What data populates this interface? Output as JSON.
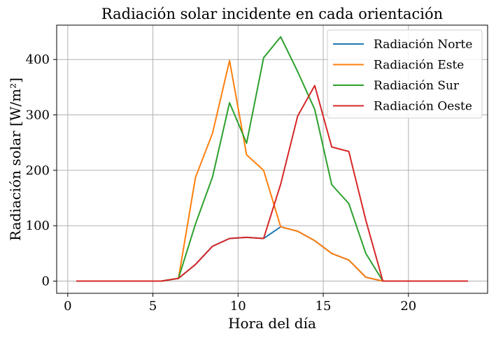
{
  "chart_data": {
    "type": "line",
    "title": "Radiación solar incidente en cada orientación",
    "xlabel": "Hora del día",
    "ylabel": "Radiación solar [W/m²]",
    "xlim": [
      -0.65,
      24.65
    ],
    "ylim": [
      -22,
      462
    ],
    "xticks": [
      0,
      5,
      10,
      15,
      20
    ],
    "yticks": [
      0,
      100,
      200,
      300,
      400
    ],
    "grid": true,
    "legend_position": "top-right",
    "x": [
      0.5,
      1.5,
      2.5,
      3.5,
      4.5,
      5.5,
      6.5,
      7.5,
      8.5,
      9.5,
      10.5,
      11.5,
      12.5,
      13.5,
      14.5,
      15.5,
      16.5,
      17.5,
      18.5,
      19.5,
      20.5,
      21.5,
      22.5,
      23.5
    ],
    "series": [
      {
        "name": "Radiación Norte",
        "color": "#1f77b4",
        "values": [
          0,
          0,
          0,
          0,
          0,
          0,
          5,
          30,
          63,
          77,
          79,
          77,
          98,
          90,
          73,
          50,
          38,
          7,
          0,
          0,
          0,
          0,
          0,
          0
        ]
      },
      {
        "name": "Radiación Este",
        "color": "#ff7f0e",
        "values": [
          0,
          0,
          0,
          0,
          0,
          0,
          5,
          187,
          267,
          398,
          228,
          200,
          98,
          90,
          73,
          50,
          38,
          7,
          0,
          0,
          0,
          0,
          0,
          0
        ]
      },
      {
        "name": "Radiación Sur",
        "color": "#2ca02c",
        "values": [
          0,
          0,
          0,
          0,
          0,
          0,
          5,
          103,
          188,
          322,
          249,
          403,
          441,
          378,
          310,
          174,
          140,
          50,
          0,
          0,
          0,
          0,
          0,
          0
        ]
      },
      {
        "name": "Radiación Oeste",
        "color": "#d62728",
        "values": [
          0,
          0,
          0,
          0,
          0,
          0,
          5,
          30,
          63,
          77,
          79,
          77,
          175,
          298,
          353,
          242,
          234,
          110,
          0,
          0,
          0,
          0,
          0,
          0
        ]
      }
    ]
  }
}
